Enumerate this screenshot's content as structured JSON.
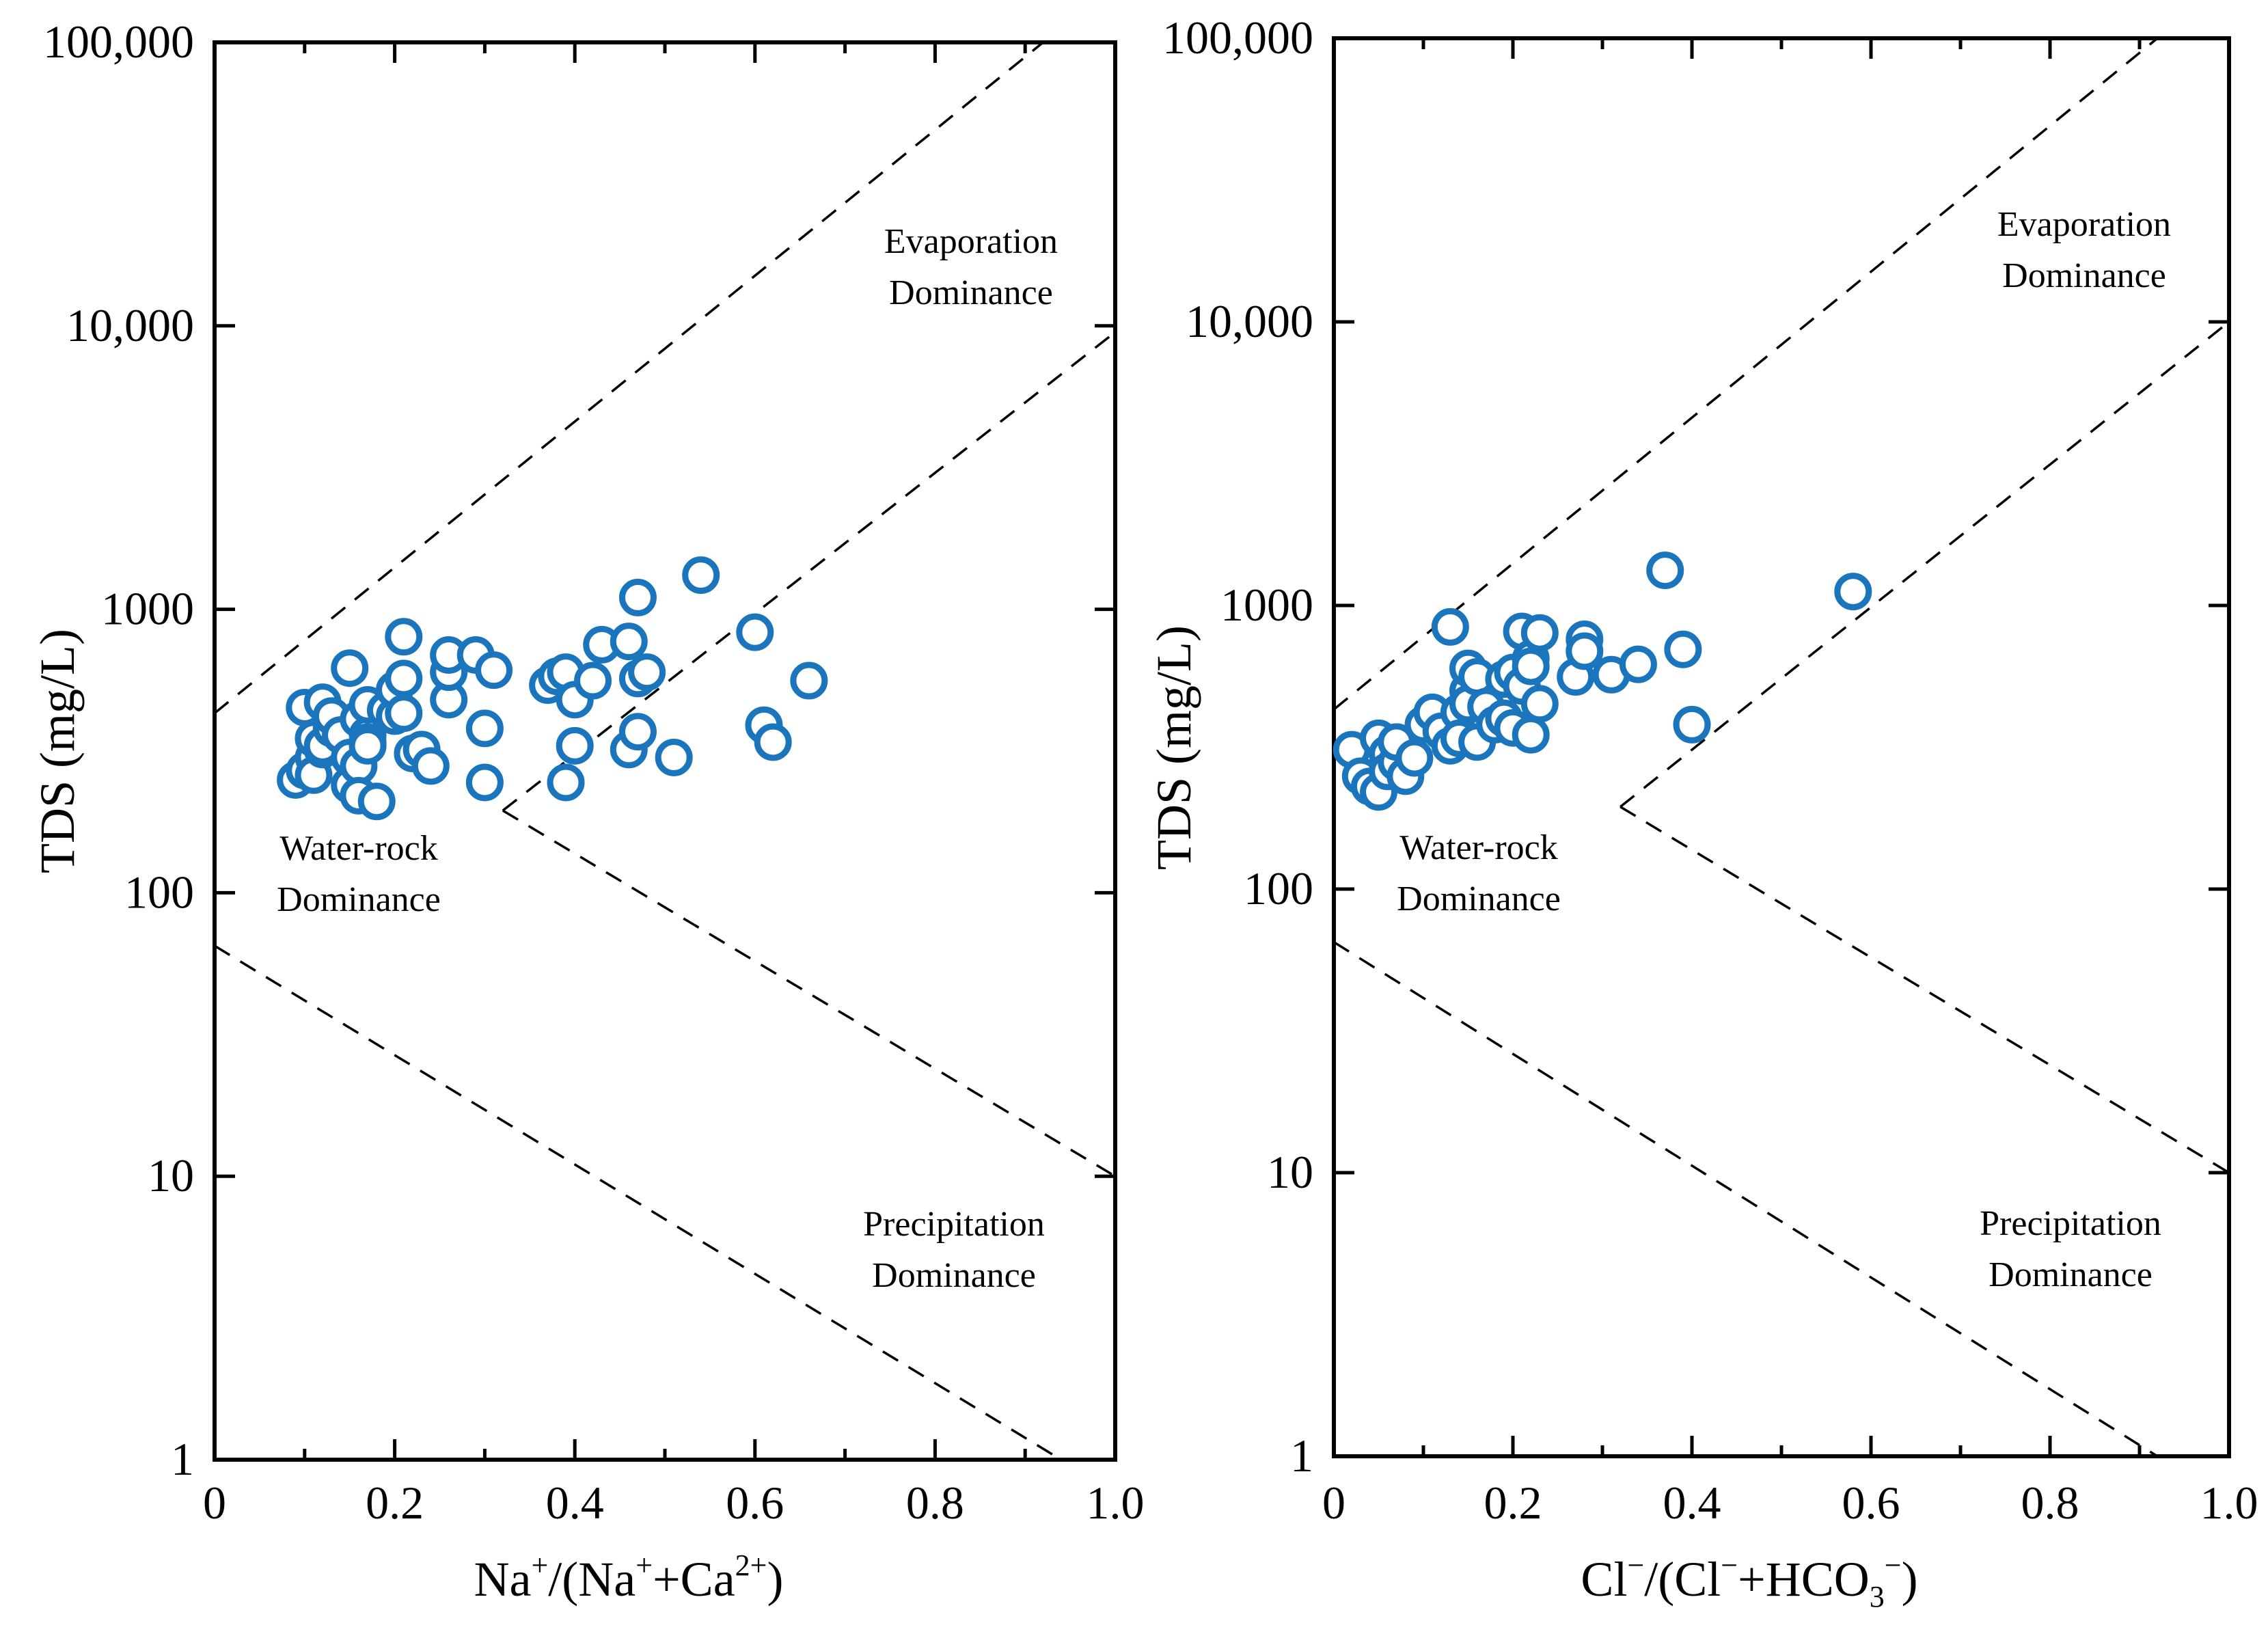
{
  "colors": {
    "marker": "#1a75bc",
    "axis": "#000000",
    "background": "#ffffff"
  },
  "chart_data": [
    {
      "type": "scatter",
      "id": "left",
      "title": "",
      "xlabel": "Na+/(Na++Ca2+)",
      "xlabel_parts": {
        "a": "Na",
        "a_sup": "+",
        "b": "/(Na",
        "b_sup": "+",
        "c": "+Ca",
        "c_sup": "2+",
        "d": ")"
      },
      "ylabel": "TDS (mg/L)",
      "xlim": [
        0,
        1.0
      ],
      "ylim": [
        1,
        100000
      ],
      "yscale": "log",
      "x_ticks": [
        0,
        0.2,
        0.4,
        0.6,
        0.8,
        1.0
      ],
      "x_tick_labels": [
        "0",
        "0.2",
        "0.4",
        "0.6",
        "0.8",
        "1.0"
      ],
      "y_ticks": [
        1,
        10,
        100,
        1000,
        10000,
        100000
      ],
      "y_tick_labels": [
        "1",
        "10",
        "100",
        "1000",
        "10,000",
        "100,000"
      ],
      "regions": {
        "evaporation": [
          "Evaporation",
          "Dominance"
        ],
        "water_rock": [
          "Water-rock",
          "Dominance"
        ],
        "precipitation": [
          "Precipitation",
          "Dominance"
        ]
      },
      "boundaries": [
        [
          [
            0,
            430
          ],
          [
            0.92,
            100000
          ]
        ],
        [
          [
            0.32,
            195
          ],
          [
            1.0,
            9500
          ]
        ],
        [
          [
            0.32,
            195
          ],
          [
            1.0,
            10
          ]
        ],
        [
          [
            0,
            65
          ],
          [
            0.94,
            1
          ]
        ]
      ],
      "points": [
        [
          0.09,
          250
        ],
        [
          0.1,
          270
        ],
        [
          0.1,
          450
        ],
        [
          0.11,
          300
        ],
        [
          0.11,
          350
        ],
        [
          0.11,
          260
        ],
        [
          0.12,
          320
        ],
        [
          0.12,
          470
        ],
        [
          0.12,
          330
        ],
        [
          0.13,
          380
        ],
        [
          0.13,
          420
        ],
        [
          0.14,
          360
        ],
        [
          0.15,
          620
        ],
        [
          0.15,
          240
        ],
        [
          0.15,
          300
        ],
        [
          0.16,
          280
        ],
        [
          0.16,
          220
        ],
        [
          0.16,
          410
        ],
        [
          0.17,
          360
        ],
        [
          0.17,
          340
        ],
        [
          0.17,
          330
        ],
        [
          0.17,
          460
        ],
        [
          0.18,
          210
        ],
        [
          0.19,
          440
        ],
        [
          0.2,
          420
        ],
        [
          0.2,
          520
        ],
        [
          0.21,
          800
        ],
        [
          0.21,
          570
        ],
        [
          0.21,
          430
        ],
        [
          0.22,
          310
        ],
        [
          0.23,
          320
        ],
        [
          0.24,
          280
        ],
        [
          0.26,
          480
        ],
        [
          0.26,
          600
        ],
        [
          0.26,
          690
        ],
        [
          0.29,
          690
        ],
        [
          0.3,
          380
        ],
        [
          0.3,
          245
        ],
        [
          0.31,
          610
        ],
        [
          0.37,
          540
        ],
        [
          0.38,
          580
        ],
        [
          0.39,
          600
        ],
        [
          0.39,
          245
        ],
        [
          0.4,
          480
        ],
        [
          0.4,
          330
        ],
        [
          0.42,
          560
        ],
        [
          0.43,
          750
        ],
        [
          0.46,
          770
        ],
        [
          0.46,
          320
        ],
        [
          0.47,
          1100
        ],
        [
          0.47,
          370
        ],
        [
          0.47,
          570
        ],
        [
          0.48,
          600
        ],
        [
          0.51,
          300
        ],
        [
          0.54,
          1320
        ],
        [
          0.6,
          830
        ],
        [
          0.61,
          390
        ],
        [
          0.62,
          340
        ],
        [
          0.66,
          560
        ]
      ]
    },
    {
      "type": "scatter",
      "id": "right",
      "title": "",
      "xlabel": "Cl−/(Cl−+HCO3−)",
      "xlabel_parts": {
        "a": "Cl",
        "a_sup": "−",
        "b": "/(Cl",
        "b_sup": "−",
        "c": "+HCO",
        "c_sub": "3",
        "c_sup": "−",
        "d": ")"
      },
      "ylabel": "TDS (mg/L)",
      "xlim": [
        0,
        1.0
      ],
      "ylim": [
        1,
        100000
      ],
      "yscale": "log",
      "x_ticks": [
        0,
        0.2,
        0.4,
        0.6,
        0.8,
        1.0
      ],
      "x_tick_labels": [
        "0",
        "0.2",
        "0.4",
        "0.6",
        "0.8",
        "1.0"
      ],
      "y_ticks": [
        1,
        10,
        100,
        1000,
        10000,
        100000
      ],
      "y_tick_labels": [
        "1",
        "10",
        "100",
        "1000",
        "10,000",
        "100,000"
      ],
      "regions": {
        "evaporation": [
          "Evaporation",
          "Dominance"
        ],
        "water_rock": [
          "Water-rock",
          "Dominance"
        ],
        "precipitation": [
          "Precipitation",
          "Dominance"
        ]
      },
      "boundaries": [
        [
          [
            0,
            430
          ],
          [
            0.92,
            100000
          ]
        ],
        [
          [
            0.32,
            195
          ],
          [
            1.0,
            10000
          ]
        ],
        [
          [
            0.32,
            195
          ],
          [
            1.0,
            10
          ]
        ],
        [
          [
            0,
            65
          ],
          [
            0.92,
            1
          ]
        ]
      ],
      "points": [
        [
          0.02,
          310
        ],
        [
          0.03,
          250
        ],
        [
          0.04,
          230
        ],
        [
          0.05,
          340
        ],
        [
          0.05,
          220
        ],
        [
          0.06,
          300
        ],
        [
          0.06,
          260
        ],
        [
          0.07,
          280
        ],
        [
          0.07,
          330
        ],
        [
          0.08,
          250
        ],
        [
          0.09,
          290
        ],
        [
          0.1,
          380
        ],
        [
          0.11,
          420
        ],
        [
          0.12,
          360
        ],
        [
          0.13,
          320
        ],
        [
          0.13,
          840
        ],
        [
          0.14,
          420
        ],
        [
          0.14,
          340
        ],
        [
          0.15,
          500
        ],
        [
          0.15,
          450
        ],
        [
          0.15,
          600
        ],
        [
          0.16,
          330
        ],
        [
          0.16,
          560
        ],
        [
          0.17,
          440
        ],
        [
          0.18,
          380
        ],
        [
          0.19,
          550
        ],
        [
          0.19,
          400
        ],
        [
          0.2,
          370
        ],
        [
          0.2,
          580
        ],
        [
          0.21,
          810
        ],
        [
          0.21,
          520
        ],
        [
          0.22,
          350
        ],
        [
          0.22,
          650
        ],
        [
          0.22,
          610
        ],
        [
          0.23,
          800
        ],
        [
          0.23,
          450
        ],
        [
          0.27,
          560
        ],
        [
          0.28,
          760
        ],
        [
          0.28,
          690
        ],
        [
          0.31,
          570
        ],
        [
          0.34,
          620
        ],
        [
          0.37,
          1330
        ],
        [
          0.39,
          700
        ],
        [
          0.4,
          380
        ],
        [
          0.58,
          1120
        ]
      ]
    }
  ]
}
